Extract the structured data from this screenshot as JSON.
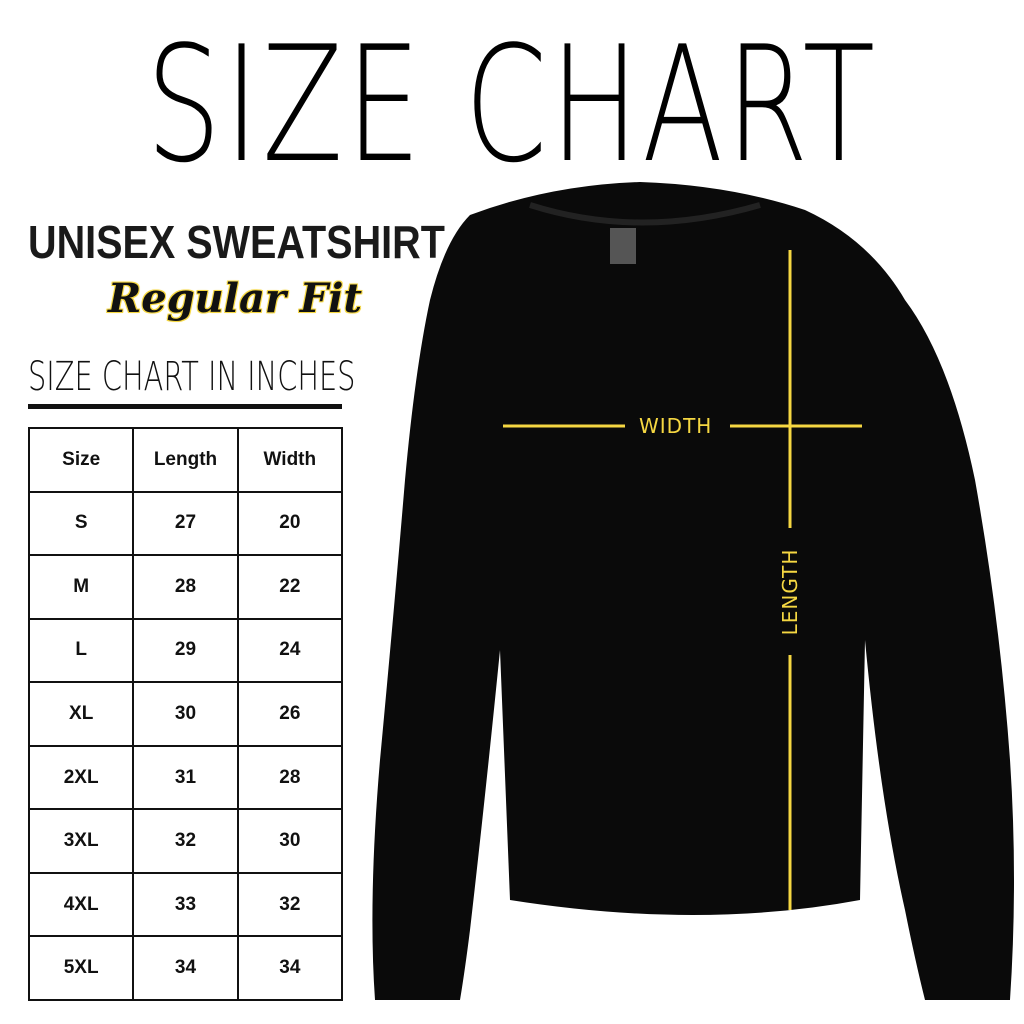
{
  "title": "SIZE CHART",
  "product": "UNISEX SWEATSHIRT",
  "fit": "Regular Fit",
  "chart_heading": "SIZE CHART IN INCHES",
  "table": {
    "headers": [
      "Size",
      "Length",
      "Width"
    ],
    "rows": [
      [
        "S",
        "27",
        "20"
      ],
      [
        "M",
        "28",
        "22"
      ],
      [
        "L",
        "29",
        "24"
      ],
      [
        "XL",
        "30",
        "26"
      ],
      [
        "2XL",
        "31",
        "28"
      ],
      [
        "3XL",
        "32",
        "30"
      ],
      [
        "4XL",
        "33",
        "32"
      ],
      [
        "5XL",
        "34",
        "34"
      ]
    ]
  },
  "diagram": {
    "width_label": "WIDTH",
    "length_label": "LENGTH",
    "line_color": "#f5d742",
    "garment_color": "#0a0a0a"
  }
}
